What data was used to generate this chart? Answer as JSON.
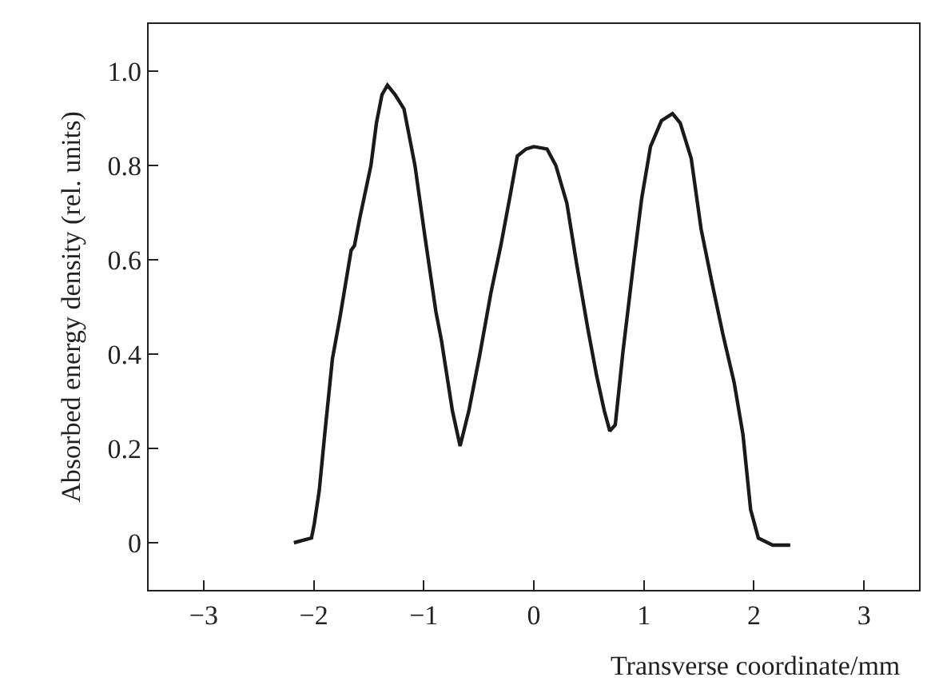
{
  "chart_data": {
    "type": "line",
    "xlabel": "Transverse coordinate/mm",
    "ylabel": "Absorbed energy density (rel. units)",
    "x": [
      -2.18,
      -2.02,
      -1.995,
      -1.95,
      -1.9,
      -1.83,
      -1.76,
      -1.66,
      -1.63,
      -1.58,
      -1.48,
      -1.43,
      -1.38,
      -1.33,
      -1.26,
      -1.18,
      -1.08,
      -0.99,
      -0.89,
      -0.84,
      -0.74,
      -0.67,
      -0.59,
      -0.49,
      -0.39,
      -0.3,
      -0.22,
      -0.15,
      -0.07,
      0.0,
      0.12,
      0.2,
      0.3,
      0.39,
      0.49,
      0.57,
      0.64,
      0.69,
      0.74,
      0.81,
      0.91,
      0.98,
      1.06,
      1.16,
      1.26,
      1.33,
      1.43,
      1.52,
      1.62,
      1.72,
      1.82,
      1.9,
      1.97,
      2.04,
      2.17,
      2.33
    ],
    "series": [
      {
        "color": "#1a1a1a",
        "values": [
          0.0,
          0.01,
          0.04,
          0.11,
          0.23,
          0.39,
          0.48,
          0.62,
          0.63,
          0.69,
          0.8,
          0.89,
          0.95,
          0.97,
          0.95,
          0.92,
          0.8,
          0.65,
          0.49,
          0.43,
          0.28,
          0.205,
          0.28,
          0.4,
          0.53,
          0.63,
          0.73,
          0.82,
          0.835,
          0.84,
          0.835,
          0.8,
          0.72,
          0.59,
          0.455,
          0.355,
          0.28,
          0.237,
          0.25,
          0.405,
          0.6,
          0.73,
          0.84,
          0.895,
          0.91,
          0.89,
          0.815,
          0.665,
          0.55,
          0.44,
          0.34,
          0.23,
          0.07,
          0.01,
          -0.005,
          -0.005
        ]
      }
    ],
    "xlim": [
      -3.5,
      3.5
    ],
    "ylim": [
      -0.1,
      1.1
    ],
    "xticks": [
      {
        "value": -3,
        "label": "−3"
      },
      {
        "value": -2,
        "label": "−2"
      },
      {
        "value": -1,
        "label": "−1"
      },
      0,
      1,
      2,
      3
    ],
    "yticks": [
      0,
      0.2,
      0.4,
      0.6,
      0.8,
      {
        "value": 1,
        "label": "1.0"
      }
    ],
    "grid": false,
    "marker": "none",
    "line_style": "solid"
  }
}
